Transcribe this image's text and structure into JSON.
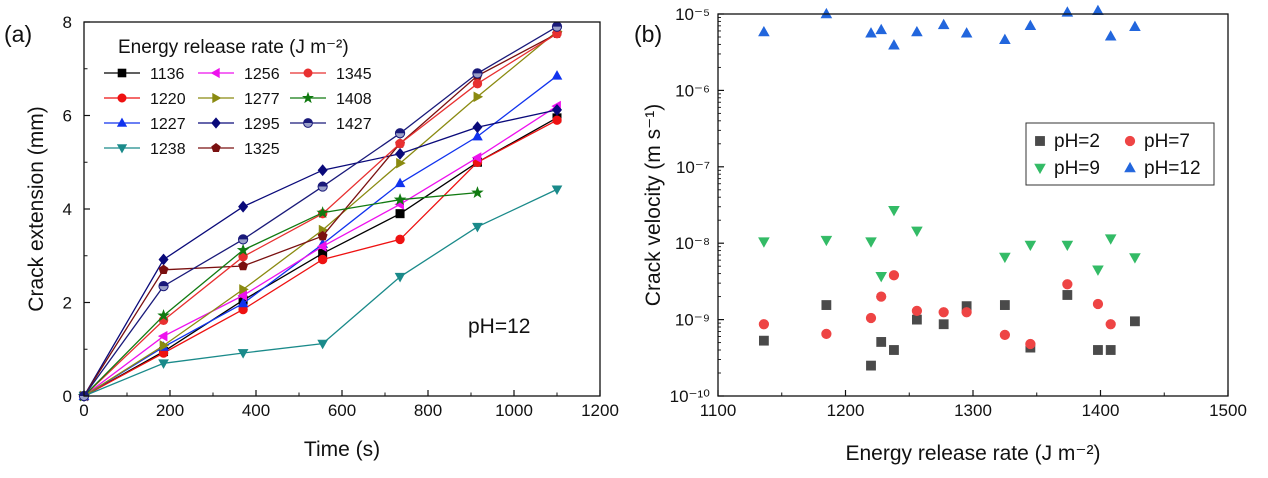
{
  "chart_data": [
    {
      "type": "line",
      "panel_label": "(a)",
      "xlabel": "Time (s)",
      "ylabel": "Crack extension (mm)",
      "xlim": [
        0,
        1200
      ],
      "ylim": [
        0,
        8
      ],
      "xticks": [
        "0",
        "200",
        "400",
        "600",
        "800",
        "1000",
        "1200"
      ],
      "yticks": [
        "0",
        "2",
        "4",
        "6",
        "8"
      ],
      "legend_title": "Energy release rate (J m⁻²)",
      "annotation": "pH=12",
      "series": [
        {
          "name": "1136",
          "color": "#000000",
          "marker": "square",
          "x": [
            0,
            185,
            370,
            555,
            735,
            915,
            1100
          ],
          "y": [
            0,
            0.95,
            2.05,
            3.05,
            3.9,
            5.0,
            5.95
          ]
        },
        {
          "name": "1220",
          "color": "#ee1111",
          "marker": "circle",
          "x": [
            0,
            185,
            370,
            555,
            735,
            915,
            1100
          ],
          "y": [
            0,
            0.92,
            1.85,
            2.92,
            3.35,
            5.0,
            5.9
          ]
        },
        {
          "name": "1227",
          "color": "#1133ee",
          "marker": "triangle-up",
          "x": [
            0,
            185,
            370,
            555,
            735,
            915,
            1100
          ],
          "y": [
            0,
            1.05,
            1.98,
            3.25,
            4.55,
            5.55,
            6.85
          ]
        },
        {
          "name": "1238",
          "color": "#1a8a8a",
          "marker": "triangle-down",
          "x": [
            0,
            185,
            370,
            555,
            735,
            915,
            1100
          ],
          "y": [
            0,
            0.7,
            0.92,
            1.12,
            2.55,
            3.62,
            4.42
          ]
        },
        {
          "name": "1256",
          "color": "#ee11ee",
          "marker": "triangle-left",
          "x": [
            0,
            185,
            370,
            555,
            735,
            915,
            1100
          ],
          "y": [
            0,
            1.28,
            2.15,
            3.2,
            4.1,
            5.1,
            6.2
          ]
        },
        {
          "name": "1277",
          "color": "#8a8a10",
          "marker": "triangle-right",
          "x": [
            0,
            185,
            370,
            555,
            735,
            915,
            1100
          ],
          "y": [
            0,
            1.08,
            2.28,
            3.55,
            4.98,
            6.4,
            7.8
          ]
        },
        {
          "name": "1295",
          "color": "#0a0a7a",
          "marker": "diamond",
          "x": [
            0,
            185,
            370,
            555,
            735,
            915,
            1100
          ],
          "y": [
            0,
            2.92,
            4.05,
            4.83,
            5.18,
            5.75,
            6.12
          ]
        },
        {
          "name": "1325",
          "color": "#7a1010",
          "marker": "pentagon",
          "x": [
            0,
            185,
            370,
            555,
            735,
            915,
            1100
          ],
          "y": [
            0,
            2.7,
            2.78,
            3.42,
            5.4,
            6.85,
            7.75
          ]
        },
        {
          "name": "1345",
          "color": "#e83030",
          "marker": "circle",
          "x": [
            0,
            185,
            370,
            555,
            735,
            915,
            1100
          ],
          "y": [
            0,
            1.62,
            2.98,
            3.9,
            5.4,
            6.68,
            7.75
          ]
        },
        {
          "name": "1408",
          "color": "#117a11",
          "marker": "star",
          "x": [
            0,
            185,
            370,
            555,
            735,
            915
          ],
          "y": [
            0,
            1.72,
            3.12,
            3.92,
            4.2,
            4.35
          ]
        },
        {
          "name": "1427",
          "color": "#1a1a7a",
          "marker": "halfcircle",
          "x": [
            0,
            185,
            370,
            555,
            735,
            915,
            1100
          ],
          "y": [
            0,
            2.35,
            3.35,
            4.48,
            5.62,
            6.9,
            7.9
          ]
        }
      ]
    },
    {
      "type": "scatter",
      "panel_label": "(b)",
      "xlabel": "Energy release rate (J m⁻²)",
      "ylabel": "Crack velocity (m s⁻¹)",
      "xlim": [
        1100,
        1500
      ],
      "ylim": [
        1e-10,
        1e-05
      ],
      "yscale": "log",
      "xticks": [
        "1100",
        "1200",
        "1300",
        "1400",
        "1500"
      ],
      "yticks": [
        "10⁻¹⁰",
        "10⁻⁹",
        "10⁻⁸",
        "10⁻⁷",
        "10⁻⁶",
        "10⁻⁵"
      ],
      "legend_position": "right-middle",
      "series": [
        {
          "name": "pH=2",
          "color": "#4a4a4a",
          "marker": "square",
          "x": [
            1136,
            1185,
            1220,
            1228,
            1238,
            1256,
            1277,
            1295,
            1325,
            1345,
            1374,
            1398,
            1408,
            1427
          ],
          "y": [
            5.3e-10,
            1.55e-09,
            2.5e-10,
            5.1e-10,
            4e-10,
            1e-09,
            8.7e-10,
            1.5e-09,
            1.55e-09,
            4.3e-10,
            2.1e-09,
            4e-10,
            4e-10,
            9.5e-10
          ]
        },
        {
          "name": "pH=7",
          "color": "#ee4444",
          "marker": "circle",
          "x": [
            1136,
            1185,
            1220,
            1228,
            1238,
            1256,
            1277,
            1295,
            1325,
            1345,
            1374,
            1398,
            1408
          ],
          "y": [
            8.7e-10,
            6.5e-10,
            1.05e-09,
            2e-09,
            3.8e-09,
            1.3e-09,
            1.25e-09,
            1.25e-09,
            6.3e-10,
            4.8e-10,
            2.9e-09,
            1.6e-09,
            8.7e-10
          ]
        },
        {
          "name": "pH=9",
          "color": "#33bb66",
          "marker": "triangle-down",
          "x": [
            1136,
            1185,
            1220,
            1228,
            1238,
            1256,
            1325,
            1345,
            1374,
            1398,
            1408,
            1427
          ],
          "y": [
            1.05e-08,
            1.1e-08,
            1.05e-08,
            3.7e-09,
            2.7e-08,
            1.45e-08,
            6.6e-09,
            9.5e-09,
            9.5e-09,
            4.5e-09,
            1.15e-08,
            6.5e-09
          ]
        },
        {
          "name": "pH=12",
          "color": "#2266dd",
          "marker": "triangle-up",
          "x": [
            1136,
            1185,
            1220,
            1228,
            1238,
            1256,
            1277,
            1295,
            1325,
            1345,
            1374,
            1398,
            1408,
            1427
          ],
          "y": [
            5.8e-06,
            1e-05,
            5.6e-06,
            6.2e-06,
            3.9e-06,
            5.8e-06,
            7.2e-06,
            5.6e-06,
            4.6e-06,
            7e-06,
            1.05e-05,
            1.1e-05,
            5.1e-06,
            6.8e-06
          ]
        }
      ]
    }
  ]
}
